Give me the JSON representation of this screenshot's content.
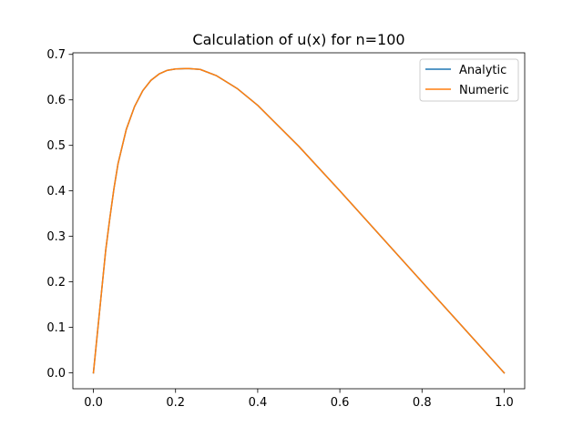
{
  "chart_data": {
    "type": "line",
    "title": "Calculation of u(x) for n=100",
    "xlabel": "",
    "ylabel": "",
    "xlim": [
      -0.05,
      1.05
    ],
    "ylim": [
      -0.035,
      0.7035
    ],
    "x_ticks": [
      "0.0",
      "0.2",
      "0.4",
      "0.6",
      "0.8",
      "1.0"
    ],
    "y_ticks": [
      "0.0",
      "0.1",
      "0.2",
      "0.3",
      "0.4",
      "0.5",
      "0.6",
      "0.7"
    ],
    "grid": false,
    "legend_position": "top-right",
    "x": [
      0.0,
      0.01,
      0.02,
      0.03,
      0.04,
      0.05,
      0.06,
      0.08,
      0.1,
      0.12,
      0.14,
      0.16,
      0.18,
      0.2,
      0.23,
      0.26,
      0.3,
      0.35,
      0.4,
      0.5,
      0.6,
      0.7,
      0.8,
      0.9,
      1.0
    ],
    "series": [
      {
        "name": "Analytic",
        "color": "#1f77b4",
        "values": [
          0.0,
          0.09,
          0.18,
          0.27,
          0.34,
          0.405,
          0.46,
          0.535,
          0.585,
          0.62,
          0.643,
          0.657,
          0.665,
          0.668,
          0.669,
          0.667,
          0.653,
          0.625,
          0.588,
          0.498,
          0.4,
          0.3,
          0.2,
          0.1,
          0.0
        ]
      },
      {
        "name": "Numeric",
        "color": "#ff7f0e",
        "values": [
          0.0,
          0.09,
          0.18,
          0.27,
          0.34,
          0.405,
          0.46,
          0.535,
          0.585,
          0.62,
          0.643,
          0.657,
          0.665,
          0.668,
          0.669,
          0.667,
          0.653,
          0.625,
          0.588,
          0.498,
          0.4,
          0.3,
          0.2,
          0.1,
          0.0
        ]
      }
    ]
  }
}
